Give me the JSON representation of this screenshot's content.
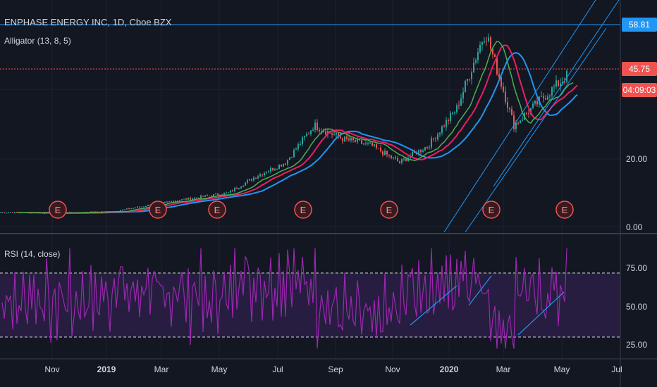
{
  "header": {
    "title": "ENPHASE ENERGY INC, 1D, Cboe BZX",
    "indicator": "Alligator (13, 8, 5)"
  },
  "rsi": {
    "label": "RSI (14, close)",
    "axis_labels": [
      "75.00",
      "50.00",
      "25.00"
    ]
  },
  "price_axis": {
    "labels": [
      "20.00",
      "0.00"
    ]
  },
  "price_tags": {
    "high": "58.81",
    "last": "45.75",
    "countdown": "04:09:03"
  },
  "earnings_marker": "E",
  "time_axis": [
    "Nov",
    "2019",
    "Mar",
    "May",
    "Jul",
    "Sep",
    "Nov",
    "2020",
    "Mar",
    "May",
    "Jul"
  ],
  "colors": {
    "background": "#131722",
    "candle_up": "#26a69a",
    "candle_down": "#ef5350",
    "jaw": "#2196f3",
    "teeth": "#e91e63",
    "lips": "#4caf50",
    "rsi": "#9c27b0",
    "trendline": "#2196f3",
    "high_tag": "#2196f3",
    "last_tag": "#ef5350"
  },
  "chart_data": {
    "type": "candlestick",
    "symbol": "ENPHASE ENERGY INC",
    "interval": "1D",
    "horizontal_level": 58.81,
    "last_price": 45.75,
    "price_key_points": [
      {
        "month": "2018-09",
        "close": 4.2
      },
      {
        "month": "2018-11",
        "close": 4.0
      },
      {
        "month": "2019-01",
        "close": 4.5
      },
      {
        "month": "2019-03",
        "close": 7.5
      },
      {
        "month": "2019-05",
        "close": 10.0
      },
      {
        "month": "2019-06",
        "close": 15.0
      },
      {
        "month": "2019-07",
        "close": 19.0
      },
      {
        "month": "2019-08",
        "close": 30.0
      },
      {
        "month": "2019-09",
        "close": 26.0
      },
      {
        "month": "2019-10",
        "close": 24.0
      },
      {
        "month": "2019-11",
        "close": 19.0
      },
      {
        "month": "2019-12",
        "close": 24.0
      },
      {
        "month": "2020-01",
        "close": 35.0
      },
      {
        "month": "2020-02",
        "close": 58.0
      },
      {
        "month": "2020-03",
        "close": 30.0
      },
      {
        "month": "2020-04",
        "close": 38.0
      },
      {
        "month": "2020-05",
        "close": 45.75
      }
    ],
    "rsi_overbought": 70,
    "rsi_oversold": 30
  }
}
